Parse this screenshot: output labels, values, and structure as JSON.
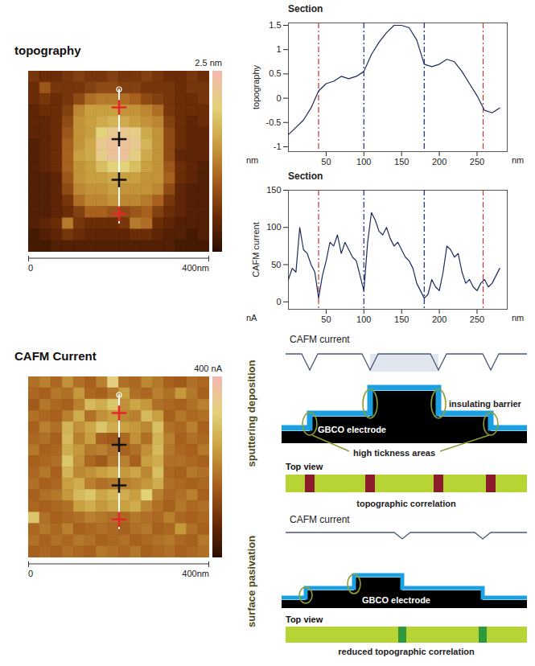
{
  "chart_data": [
    {
      "type": "heatmap",
      "title": "topography",
      "extent": [
        0,
        400
      ],
      "scale_labels": [
        "0",
        "400nm"
      ],
      "colorbar": {
        "range": [
          0,
          2.5
        ],
        "label": "2.5 nm"
      },
      "profile": {
        "x": 200,
        "y": [
          40,
          335
        ],
        "markers": [
          {
            "y": 80,
            "color": "#e8262a"
          },
          {
            "y": 150,
            "color": "#111111"
          },
          {
            "y": 240,
            "color": "#111111"
          },
          {
            "y": 315,
            "color": "#e8262a"
          }
        ]
      },
      "cells": [
        [
          0.6,
          0.5,
          0.5,
          0.6,
          0.7,
          0.6,
          0.6,
          0.7,
          0.6,
          0.6,
          0.7,
          0.6,
          0.5,
          0.5,
          0.6,
          0.5
        ],
        [
          0.5,
          0.9,
          0.6,
          0.6,
          0.6,
          0.7,
          0.8,
          0.8,
          0.7,
          0.7,
          0.6,
          0.6,
          0.6,
          0.5,
          0.6,
          0.6
        ],
        [
          0.5,
          0.6,
          0.5,
          0.6,
          0.8,
          1.1,
          1.2,
          1.2,
          1.1,
          1.0,
          0.8,
          0.7,
          0.6,
          0.5,
          0.5,
          0.6
        ],
        [
          0.4,
          0.5,
          0.5,
          0.7,
          1.3,
          1.5,
          1.5,
          1.5,
          1.4,
          1.4,
          1.3,
          1.1,
          0.6,
          0.5,
          0.5,
          0.5
        ],
        [
          0.4,
          0.4,
          0.5,
          0.8,
          1.4,
          1.5,
          1.6,
          1.7,
          1.6,
          1.5,
          1.4,
          1.3,
          0.7,
          0.5,
          0.4,
          0.5
        ],
        [
          0.4,
          0.4,
          0.5,
          0.9,
          1.4,
          1.5,
          2.0,
          2.2,
          2.2,
          2.1,
          1.6,
          1.4,
          0.8,
          0.5,
          0.4,
          0.4
        ],
        [
          0.3,
          0.4,
          0.5,
          1.0,
          1.4,
          1.6,
          2.2,
          2.3,
          2.3,
          2.2,
          1.7,
          1.4,
          0.8,
          0.5,
          0.4,
          0.4
        ],
        [
          0.3,
          0.4,
          0.5,
          1.0,
          1.5,
          1.6,
          2.1,
          2.3,
          2.3,
          2.1,
          1.6,
          1.4,
          0.8,
          0.4,
          0.4,
          0.4
        ],
        [
          0.3,
          0.4,
          0.5,
          1.0,
          1.4,
          1.5,
          1.8,
          2.0,
          2.0,
          1.8,
          1.5,
          1.4,
          0.9,
          0.5,
          0.4,
          0.3
        ],
        [
          0.3,
          0.3,
          0.4,
          0.9,
          1.4,
          1.5,
          1.5,
          1.6,
          1.5,
          1.5,
          1.4,
          1.4,
          1.0,
          0.5,
          0.4,
          0.3
        ],
        [
          0.3,
          0.3,
          0.4,
          0.8,
          1.3,
          1.4,
          1.4,
          1.5,
          1.4,
          1.4,
          1.4,
          1.3,
          0.8,
          0.4,
          0.3,
          0.3
        ],
        [
          0.3,
          0.3,
          0.4,
          0.6,
          1.1,
          1.3,
          1.3,
          1.4,
          1.3,
          1.3,
          1.2,
          1.0,
          0.6,
          0.4,
          0.3,
          0.3
        ],
        [
          0.3,
          0.3,
          0.4,
          0.5,
          0.7,
          1.0,
          1.0,
          0.9,
          0.8,
          0.9,
          1.0,
          0.7,
          0.5,
          0.4,
          0.3,
          0.3
        ],
        [
          0.3,
          0.4,
          0.5,
          1.2,
          0.6,
          0.5,
          0.5,
          0.5,
          0.6,
          1.2,
          1.1,
          0.5,
          0.4,
          0.3,
          0.3,
          0.3
        ],
        [
          0.2,
          0.3,
          0.4,
          0.6,
          0.5,
          0.4,
          0.4,
          0.4,
          0.4,
          0.5,
          0.5,
          0.4,
          0.3,
          0.3,
          0.2,
          0.3
        ],
        [
          0.2,
          0.2,
          0.3,
          0.3,
          0.3,
          0.3,
          0.3,
          0.3,
          0.3,
          0.3,
          0.3,
          0.3,
          0.3,
          0.2,
          0.2,
          0.2
        ]
      ]
    },
    {
      "type": "line",
      "title": "Section",
      "y_label": "topography",
      "y_unit": "nm",
      "x_unit": "nm",
      "color": "#1b2a5c",
      "x": [
        0,
        10,
        20,
        30,
        40,
        50,
        60,
        70,
        80,
        90,
        100,
        110,
        120,
        130,
        140,
        150,
        160,
        170,
        180,
        190,
        200,
        210,
        220,
        230,
        240,
        250,
        260,
        270,
        280
      ],
      "values": [
        -0.75,
        -0.6,
        -0.45,
        -0.2,
        0.15,
        0.3,
        0.35,
        0.45,
        0.4,
        0.45,
        0.55,
        0.9,
        1.15,
        1.35,
        1.5,
        1.5,
        1.45,
        1.2,
        0.7,
        0.65,
        0.7,
        0.8,
        0.75,
        0.55,
        0.3,
        0.05,
        -0.25,
        -0.3,
        -0.2
      ],
      "xlim": [
        0,
        290
      ],
      "ylim": [
        -1.1,
        1.55
      ],
      "xticks": [
        50,
        100,
        150,
        200,
        250
      ],
      "yticks": [
        -1,
        -0.5,
        0,
        0.5,
        1,
        1.5
      ],
      "cursors": {
        "x": [
          40,
          100,
          180,
          258
        ],
        "colors": [
          "#c0392b",
          "#1f2d7a",
          "#1f2d7a",
          "#c0392b"
        ]
      }
    },
    {
      "type": "line",
      "title": "Section",
      "y_label": "CAFM current",
      "y_unit": "nA",
      "x_unit": "nm",
      "color": "#1b2a5c",
      "x": [
        0,
        5,
        10,
        15,
        20,
        25,
        30,
        35,
        40,
        45,
        50,
        55,
        60,
        65,
        70,
        75,
        80,
        85,
        90,
        95,
        100,
        105,
        110,
        115,
        120,
        125,
        130,
        135,
        140,
        145,
        150,
        155,
        160,
        165,
        170,
        175,
        180,
        185,
        190,
        195,
        200,
        205,
        210,
        215,
        220,
        225,
        230,
        235,
        240,
        245,
        250,
        255,
        260,
        265,
        270,
        275,
        280
      ],
      "values": [
        30,
        45,
        40,
        100,
        70,
        65,
        50,
        40,
        5,
        35,
        55,
        80,
        75,
        90,
        65,
        80,
        70,
        60,
        55,
        35,
        15,
        80,
        120,
        110,
        95,
        90,
        100,
        85,
        75,
        80,
        70,
        60,
        55,
        45,
        25,
        15,
        5,
        10,
        30,
        20,
        15,
        40,
        75,
        70,
        60,
        65,
        40,
        25,
        30,
        20,
        15,
        25,
        30,
        20,
        25,
        35,
        45
      ],
      "xlim": [
        0,
        290
      ],
      "ylim": [
        -10,
        150
      ],
      "xticks": [
        50,
        100,
        150,
        200,
        250
      ],
      "yticks": [
        0,
        50,
        100,
        150
      ],
      "cursors": {
        "x": [
          40,
          100,
          180,
          258
        ],
        "colors": [
          "#c0392b",
          "#1f2d7a",
          "#1f2d7a",
          "#c0392b"
        ]
      }
    },
    {
      "type": "heatmap",
      "title": "CAFM Current",
      "extent": [
        0,
        400
      ],
      "scale_labels": [
        "0",
        "400nm"
      ],
      "colorbar": {
        "range": [
          0,
          400
        ],
        "label": "400 nA"
      },
      "profile": {
        "x": 200,
        "y": [
          40,
          335
        ],
        "markers": [
          {
            "y": 80,
            "color": "#e8262a"
          },
          {
            "y": 150,
            "color": "#111111"
          },
          {
            "y": 240,
            "color": "#111111"
          },
          {
            "y": 315,
            "color": "#e8262a"
          }
        ]
      },
      "cells": [
        [
          180,
          200,
          170,
          220,
          180,
          160,
          200,
          330,
          180,
          170,
          210,
          190,
          160,
          150,
          180,
          170
        ],
        [
          170,
          160,
          190,
          180,
          230,
          170,
          160,
          190,
          240,
          180,
          170,
          200,
          180,
          230,
          190,
          160
        ],
        [
          150,
          190,
          170,
          160,
          200,
          280,
          260,
          300,
          220,
          250,
          230,
          180,
          170,
          160,
          180,
          200
        ],
        [
          180,
          170,
          160,
          200,
          260,
          180,
          220,
          240,
          210,
          200,
          280,
          240,
          160,
          190,
          170,
          180
        ],
        [
          160,
          200,
          180,
          270,
          220,
          250,
          300,
          260,
          240,
          230,
          210,
          290,
          180,
          170,
          200,
          160
        ],
        [
          170,
          180,
          160,
          280,
          200,
          240,
          160,
          150,
          170,
          220,
          180,
          270,
          200,
          160,
          180,
          170
        ],
        [
          190,
          160,
          170,
          260,
          230,
          190,
          200,
          180,
          160,
          180,
          220,
          280,
          190,
          170,
          160,
          190
        ],
        [
          160,
          170,
          180,
          300,
          220,
          170,
          150,
          190,
          200,
          160,
          240,
          260,
          180,
          180,
          170,
          160
        ],
        [
          170,
          190,
          160,
          270,
          210,
          220,
          240,
          260,
          230,
          250,
          210,
          290,
          170,
          160,
          190,
          180
        ],
        [
          180,
          160,
          170,
          240,
          260,
          200,
          180,
          190,
          200,
          210,
          230,
          260,
          180,
          170,
          160,
          170
        ],
        [
          160,
          180,
          190,
          230,
          280,
          300,
          250,
          270,
          260,
          240,
          320,
          200,
          170,
          180,
          200,
          160
        ],
        [
          170,
          160,
          170,
          180,
          240,
          260,
          230,
          250,
          240,
          260,
          210,
          180,
          160,
          190,
          170,
          180
        ],
        [
          300,
          180,
          160,
          170,
          180,
          200,
          190,
          180,
          170,
          190,
          180,
          170,
          200,
          170,
          160,
          170
        ],
        [
          170,
          190,
          170,
          200,
          160,
          170,
          180,
          170,
          160,
          180,
          190,
          160,
          170,
          230,
          180,
          160
        ],
        [
          180,
          160,
          180,
          170,
          190,
          180,
          160,
          170,
          180,
          160,
          170,
          180,
          190,
          170,
          160,
          190
        ],
        [
          160,
          170,
          160,
          180,
          170,
          160,
          190,
          180,
          170,
          190,
          160,
          170,
          180,
          160,
          170,
          180
        ]
      ]
    }
  ],
  "diagrams": [
    {
      "title": "sputtering deposition",
      "current_label": "CAFM current",
      "layer_label": "insulating barrier",
      "electrode_label": "GBCO electrode",
      "callout": "high tickness areas",
      "top_view_label": "Top view",
      "caption": "topographic correlation"
    },
    {
      "title": "surface pasivation",
      "current_label": "CAFM current",
      "electrode_label": "GBCO electrode",
      "top_view_label": "Top view",
      "caption": "reduced topographic correlation"
    }
  ]
}
